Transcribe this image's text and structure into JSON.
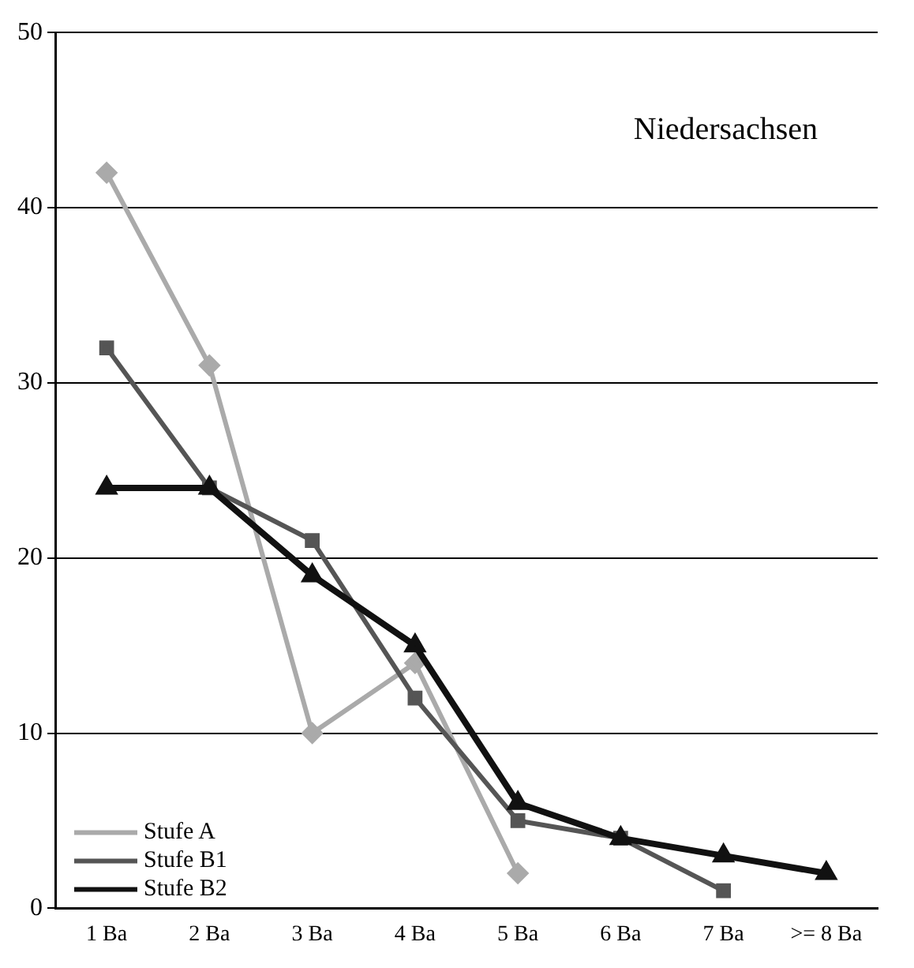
{
  "chart_data": {
    "type": "line",
    "title": "Niedersachsen",
    "categories": [
      "1 Ba",
      "2 Ba",
      "3 Ba",
      "4 Ba",
      "5 Ba",
      "6 Ba",
      "7 Ba",
      ">= 8 Ba"
    ],
    "series": [
      {
        "name": "Stufe A",
        "color": "#aaaaaa",
        "marker": "diamond",
        "values": [
          42,
          31,
          10,
          14,
          2,
          null,
          null,
          null
        ]
      },
      {
        "name": "Stufe B1",
        "color": "#555555",
        "marker": "square",
        "values": [
          32,
          24,
          21,
          12,
          5,
          4,
          1,
          null
        ]
      },
      {
        "name": "Stufe B2",
        "color": "#111111",
        "marker": "triangle",
        "values": [
          24,
          24,
          19,
          15,
          6,
          4,
          3,
          2
        ]
      }
    ],
    "ylim": [
      0,
      50
    ],
    "yticks": [
      0,
      10,
      20,
      30,
      40,
      50
    ],
    "grid": "y",
    "legend": "bottom left",
    "line_style": "solid"
  }
}
